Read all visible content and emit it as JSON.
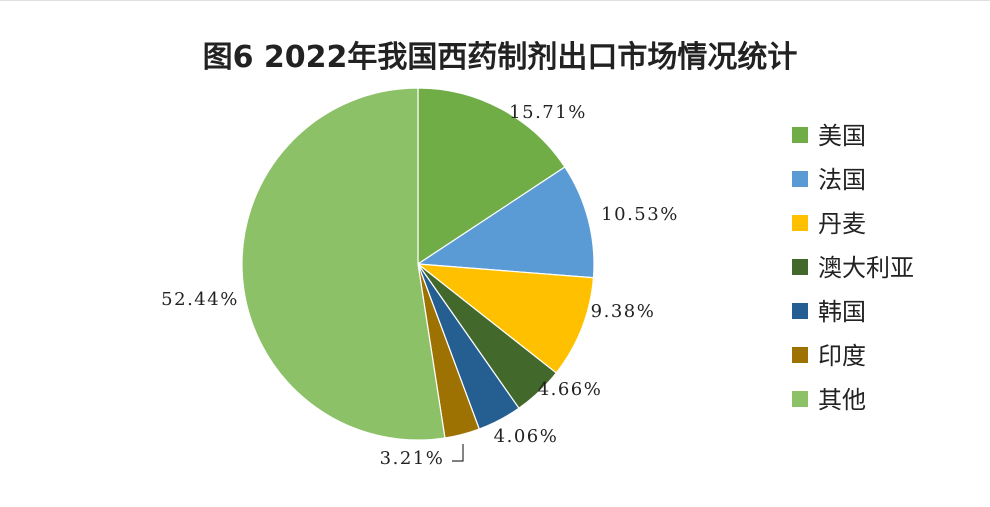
{
  "chart_data": {
    "type": "pie",
    "title": "图6 2022年我国西药制剂出口市场情况统计",
    "slices": [
      {
        "name": "美国",
        "value": 15.71,
        "label": "15.71%",
        "color": "#70ad47"
      },
      {
        "name": "法国",
        "value": 10.53,
        "label": "10.53%",
        "color": "#5b9bd5"
      },
      {
        "name": "丹麦",
        "value": 9.38,
        "label": "9.38%",
        "color": "#ffc000"
      },
      {
        "name": "澳大利亚",
        "value": 4.66,
        "label": "4.66%",
        "color": "#43682b"
      },
      {
        "name": "韩国",
        "value": 4.06,
        "label": "4.06%",
        "color": "#255e91"
      },
      {
        "name": "印度",
        "value": 3.21,
        "label": "3.21%",
        "color": "#9e7202"
      },
      {
        "name": "其他",
        "value": 52.44,
        "label": "52.44%",
        "color": "#8cc168"
      }
    ],
    "legend_position": "right",
    "start_angle": "12 o'clock",
    "direction": "clockwise"
  }
}
